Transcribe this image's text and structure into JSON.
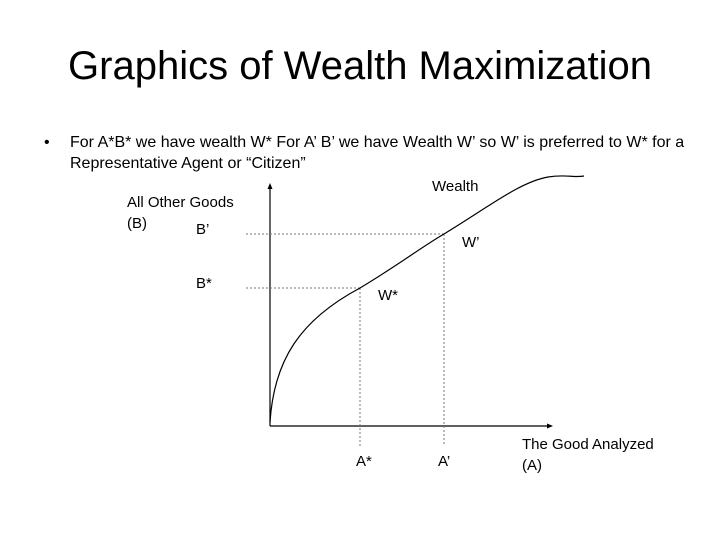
{
  "slide": {
    "title": "Graphics of Wealth Maximization",
    "bullet_marker": "•",
    "bullet_text": "For A*B* we have wealth W* For A’ B’ we have Wealth W’ so W’ is preferred to W* for a Representative Agent  or “Citizen”"
  },
  "diagram": {
    "y_axis_label_line1": "All Other Goods",
    "y_axis_label_line2": "(B)",
    "x_axis_label_line1": "The Good Analyzed",
    "x_axis_label_line2": "(A)",
    "curve_label": "Wealth",
    "point_prime_label": "W’",
    "point_star_label": "W*",
    "b_prime_label": "B’",
    "b_star_label": "B*",
    "a_star_label": "A*",
    "a_prime_label": "A’"
  }
}
